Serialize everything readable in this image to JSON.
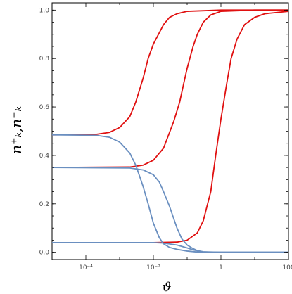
{
  "chart_data": {
    "type": "line",
    "xscale": "log",
    "xlim": [
      1e-05,
      100
    ],
    "ylim": [
      -0.03,
      1.03
    ],
    "x_ticks": [
      0.0001,
      0.01,
      1,
      100
    ],
    "x_tick_labels": [
      "10⁻⁴",
      "10⁻²",
      "1",
      "100"
    ],
    "y_ticks": [
      0.0,
      0.2,
      0.4,
      0.6,
      0.8,
      1.0
    ],
    "y_tick_labels": [
      "0.0",
      "0.2",
      "0.4",
      "0.6",
      "0.8",
      "1.0"
    ],
    "xlabel": "ϑ",
    "ylabel": "n⁺ₖ,n⁻ₖ",
    "grid": false,
    "legend": "none",
    "colors": {
      "red": "#e01010",
      "blue": "#6a8fc0",
      "frame": "#000000",
      "tick_text": "#444444"
    },
    "series": [
      {
        "color": "red",
        "points": [
          [
            1e-05,
            0.485
          ],
          [
            0.0002,
            0.487
          ],
          [
            0.0005,
            0.495
          ],
          [
            0.001,
            0.515
          ],
          [
            0.002,
            0.56
          ],
          [
            0.003,
            0.62
          ],
          [
            0.005,
            0.72
          ],
          [
            0.007,
            0.8
          ],
          [
            0.01,
            0.86
          ],
          [
            0.02,
            0.94
          ],
          [
            0.03,
            0.97
          ],
          [
            0.05,
            0.985
          ],
          [
            0.1,
            0.995
          ],
          [
            1,
            1.0
          ],
          [
            100,
            1.0
          ]
        ]
      },
      {
        "color": "red",
        "points": [
          [
            1e-05,
            0.35
          ],
          [
            0.002,
            0.352
          ],
          [
            0.005,
            0.36
          ],
          [
            0.01,
            0.38
          ],
          [
            0.02,
            0.43
          ],
          [
            0.04,
            0.54
          ],
          [
            0.06,
            0.62
          ],
          [
            0.08,
            0.7
          ],
          [
            0.1,
            0.76
          ],
          [
            0.15,
            0.85
          ],
          [
            0.2,
            0.9
          ],
          [
            0.3,
            0.95
          ],
          [
            0.5,
            0.98
          ],
          [
            1,
            0.995
          ],
          [
            10,
            1.0
          ],
          [
            100,
            1.0
          ]
        ]
      },
      {
        "color": "red",
        "points": [
          [
            1e-05,
            0.04
          ],
          [
            0.01,
            0.04
          ],
          [
            0.05,
            0.042
          ],
          [
            0.1,
            0.05
          ],
          [
            0.2,
            0.08
          ],
          [
            0.3,
            0.13
          ],
          [
            0.5,
            0.25
          ],
          [
            0.7,
            0.4
          ],
          [
            1,
            0.55
          ],
          [
            1.5,
            0.7
          ],
          [
            2,
            0.8
          ],
          [
            3,
            0.88
          ],
          [
            5,
            0.94
          ],
          [
            10,
            0.97
          ],
          [
            20,
            0.985
          ],
          [
            100,
            0.995
          ]
        ]
      },
      {
        "color": "blue",
        "points": [
          [
            1e-05,
            0.485
          ],
          [
            0.0002,
            0.483
          ],
          [
            0.0005,
            0.475
          ],
          [
            0.001,
            0.455
          ],
          [
            0.002,
            0.41
          ],
          [
            0.003,
            0.36
          ],
          [
            0.004,
            0.31
          ],
          [
            0.005,
            0.27
          ],
          [
            0.007,
            0.2
          ],
          [
            0.01,
            0.12
          ],
          [
            0.015,
            0.06
          ],
          [
            0.02,
            0.035
          ],
          [
            0.03,
            0.02
          ],
          [
            0.05,
            0.012
          ],
          [
            0.1,
            0.005
          ],
          [
            0.2,
            0.001
          ],
          [
            1,
            0.0
          ],
          [
            100,
            0.0
          ]
        ]
      },
      {
        "color": "blue",
        "points": [
          [
            1e-05,
            0.35
          ],
          [
            0.002,
            0.348
          ],
          [
            0.005,
            0.34
          ],
          [
            0.01,
            0.32
          ],
          [
            0.015,
            0.29
          ],
          [
            0.02,
            0.25
          ],
          [
            0.03,
            0.19
          ],
          [
            0.05,
            0.1
          ],
          [
            0.07,
            0.055
          ],
          [
            0.1,
            0.03
          ],
          [
            0.15,
            0.015
          ],
          [
            0.2,
            0.007
          ],
          [
            0.3,
            0.002
          ],
          [
            1,
            0.0
          ],
          [
            100,
            0.0
          ]
        ]
      },
      {
        "color": "blue",
        "points": [
          [
            1e-05,
            0.04
          ],
          [
            0.01,
            0.04
          ],
          [
            0.02,
            0.038
          ],
          [
            0.05,
            0.03
          ],
          [
            0.1,
            0.018
          ],
          [
            0.15,
            0.01
          ],
          [
            0.2,
            0.006
          ],
          [
            0.3,
            0.002
          ],
          [
            0.5,
            0.0
          ],
          [
            100,
            0.0
          ]
        ]
      }
    ]
  }
}
